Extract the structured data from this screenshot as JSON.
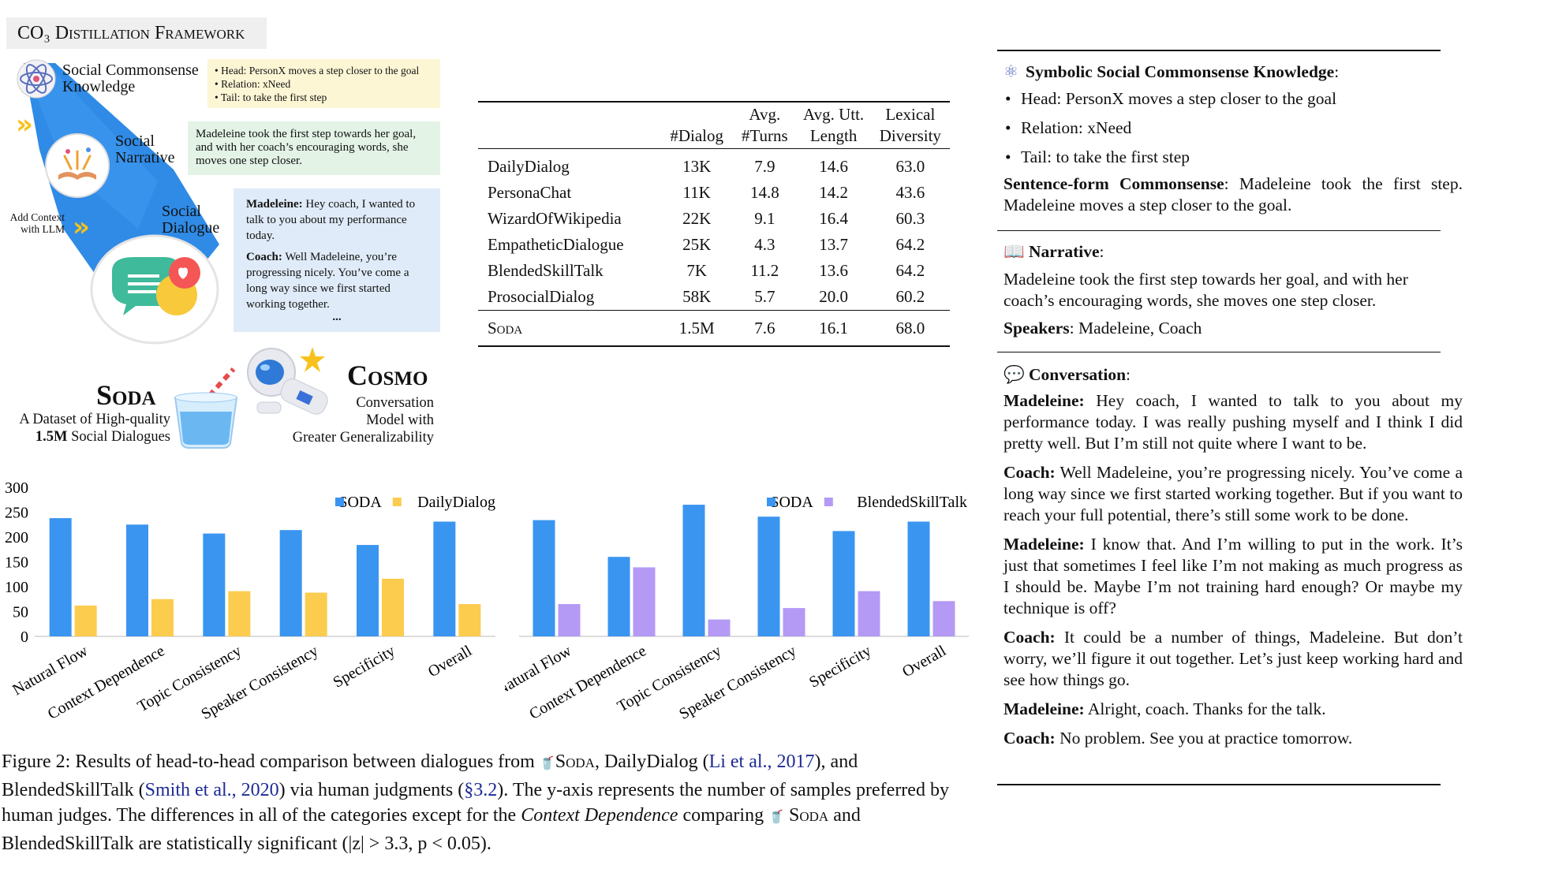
{
  "framework": {
    "title": "CO₃ Distillation Framework",
    "steps": [
      {
        "label": "Social Commonsense Knowledge",
        "note": [
          "Head: PersonX moves a step closer to the goal",
          "Relation: xNeed",
          "Tail: to take the first step"
        ]
      },
      {
        "label": "Social Narrative",
        "note": "Madeleine took the first step towards her goal, and with her coach’s encouraging words, she moves one step closer."
      },
      {
        "label": "Social Dialogue",
        "add_context": "Add Context with LLM",
        "turns": [
          {
            "speaker": "Madeleine:",
            "text": "Hey coach, I wanted to talk to you about my performance today."
          },
          {
            "speaker": "Coach:",
            "text": "Well Madeleine, you’re progressing nicely. You’ve come a long way since we first started working together."
          }
        ],
        "ellipsis": "..."
      }
    ],
    "soda": {
      "name": "Soda",
      "desc_line1": "A Dataset of High-quality",
      "desc_bold": "1.5M",
      "desc_rest": "Social Dialogues"
    },
    "cosmo": {
      "name": "Cosmo",
      "desc": [
        "Conversation",
        "Model with",
        "Greater Generalizability"
      ]
    }
  },
  "table": {
    "headers": [
      "",
      "#Dialog",
      "Avg. #Turns",
      "Avg. Utt. Length",
      "Lexical Diversity"
    ],
    "rows": [
      [
        "DailyDialog",
        "13K",
        "7.9",
        "14.6",
        "63.0"
      ],
      [
        "PersonaChat",
        "11K",
        "14.8",
        "14.2",
        "43.6"
      ],
      [
        "WizardOfWikipedia",
        "22K",
        "9.1",
        "16.4",
        "60.3"
      ],
      [
        "EmpatheticDialogue",
        "25K",
        "4.3",
        "13.7",
        "64.2"
      ],
      [
        "BlendedSkillTalk",
        "7K",
        "11.2",
        "13.6",
        "64.2"
      ],
      [
        "ProsocialDialog",
        "58K",
        "5.7",
        "20.0",
        "60.2"
      ]
    ],
    "soda_row": [
      "Soda",
      "1.5M",
      "7.6",
      "16.1",
      "68.0"
    ]
  },
  "chart_data": [
    {
      "type": "bar",
      "categories": [
        "Natural Flow",
        "Context Dependence",
        "Topic Consistency",
        "Speaker Consistency",
        "Specificity",
        "Overall"
      ],
      "series": [
        {
          "name": "SODA",
          "values": [
            238,
            225,
            207,
            214,
            184,
            231
          ]
        },
        {
          "name": "DailyDialog",
          "values": [
            62,
            75,
            91,
            88,
            116,
            65
          ]
        }
      ],
      "yticks": [
        "0",
        "50",
        "100",
        "150",
        "200",
        "250",
        "300"
      ],
      "ylim": [
        0,
        300
      ],
      "legend": "top-right",
      "colors": [
        "#3a95f0",
        "#fccc4e"
      ],
      "grid": false
    },
    {
      "type": "bar",
      "categories": [
        "Natural Flow",
        "Context Dependence",
        "Topic Consistency",
        "Speaker Consistency",
        "Specificity",
        "Overall"
      ],
      "series": [
        {
          "name": "SODA",
          "values": [
            234,
            160,
            265,
            241,
            212,
            231
          ]
        },
        {
          "name": "BlendedSkillTalk",
          "values": [
            65,
            139,
            34,
            57,
            91,
            71
          ]
        }
      ],
      "ylim": [
        0,
        300
      ],
      "legend": "top-right",
      "colors": [
        "#3a95f0",
        "#b49af5"
      ],
      "grid": false
    }
  ],
  "caption": {
    "label": "Figure 2:",
    "t1": "Results of head-to-head comparison between dialogues from",
    "soda": "Soda",
    "t2": ", DailyDialog (",
    "cite1": "Li et al., 2017",
    "t3": "), and BlendedSkillTalk (",
    "cite2": "Smith et al., 2020",
    "t4": ") via human judgments (",
    "ref": "§3.2",
    "t5": "). The y-axis represents the number of samples preferred by human judges. The differences in all of the categories except for the",
    "italic": "Context Dependence",
    "t6": "comparing",
    "soda2": "Soda",
    "t7": "and BlendedSkillTalk are statistically significant (|z| > 3.3,   p < 0.05)."
  },
  "right_panel": {
    "symbolic_head": "Symbolic Social Commonsense Knowledge",
    "bullets": [
      "Head: PersonX moves a step closer to the goal",
      "Relation: xNeed",
      "Tail: to take the first step"
    ],
    "sentence_head": "Sentence-form Commonsense",
    "sentence": "Madeleine took the first step. Madeleine moves a step closer to the goal.",
    "narrative_head": "Narrative",
    "narrative": "Madeleine took the first step towards her goal, and with her coach’s encouraging words, she moves one step closer.",
    "speakers_head": "Speakers",
    "speakers": "Madeleine, Coach",
    "conversation_head": "Conversation",
    "turns": [
      {
        "speaker": "Madeleine:",
        "text": "Hey coach, I wanted to talk to you about my performance today. I was really pushing myself and I think I did pretty well. But I’m still not quite where I want to be."
      },
      {
        "speaker": "Coach:",
        "text": "Well Madeleine, you’re progressing nicely. You’ve come a long way since we first started working together. But if you want to reach your full potential, there’s still some work to be done."
      },
      {
        "speaker": "Madeleine:",
        "text": "I know that.  And I’m willing to put in the work. It’s just that sometimes I feel like I’m not making as much progress as I should be. Maybe I’m not training hard enough? Or maybe my technique is off?"
      },
      {
        "speaker": "Coach:",
        "text": "It could be a number of things, Madeleine. But don’t worry, we’ll figure it out together. Let’s just keep working hard and see how things go."
      },
      {
        "speaker": "Madeleine:",
        "text": "Alright, coach. Thanks for the talk."
      },
      {
        "speaker": "Coach:",
        "text": "No problem. See you at practice tomorrow."
      }
    ]
  }
}
